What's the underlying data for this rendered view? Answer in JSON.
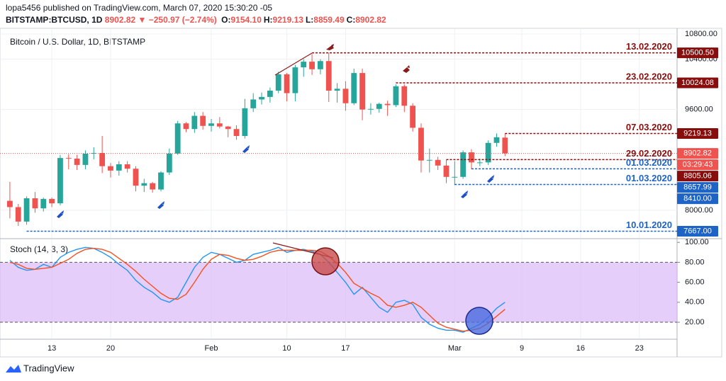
{
  "header": {
    "published": "lopa5456 published on TradingView.com, March 07, 2020 15:30:20 -05",
    "symbol": "BITSTAMP:BTCUSD, 1D",
    "change": "8902.82 ▼ −250.97 (−2.74%)",
    "ohlc": [
      {
        "key": "O:",
        "value": "9154.10"
      },
      {
        "key": "H:",
        "value": "9219.13"
      },
      {
        "key": "L:",
        "value": "8859.49"
      },
      {
        "key": "C:",
        "value": "8902.82"
      }
    ]
  },
  "footer": {
    "brand": "TradingView"
  },
  "chart_data": [
    {
      "type": "candlestick",
      "title": "Bitcoin / U.S. Dollar, 1D, BITSTAMP",
      "categories": [
        null,
        null,
        null,
        null,
        null,
        "13",
        null,
        null,
        null,
        null,
        null,
        null,
        "20",
        null,
        null,
        null,
        null,
        null,
        null,
        null,
        null,
        null,
        null,
        null,
        "Feb",
        null,
        null,
        null,
        null,
        null,
        null,
        null,
        null,
        "10",
        null,
        null,
        null,
        null,
        null,
        null,
        "17",
        null,
        null,
        null,
        null,
        null,
        null,
        null,
        null,
        null,
        null,
        null,
        null,
        "Mar",
        null,
        null,
        null,
        null,
        null,
        null,
        null,
        "9",
        null,
        null,
        null,
        null,
        null,
        null,
        "16",
        null,
        null,
        null,
        null,
        null,
        null,
        "23",
        null,
        null,
        null,
        null
      ],
      "open": [
        8150,
        8050,
        7820,
        8190,
        8030,
        8180,
        8110,
        8830,
        8820,
        8720,
        8900,
        8910,
        8700,
        8630,
        8730,
        8660,
        8390,
        8430,
        8330,
        8600,
        8900,
        9380,
        9290,
        9500,
        9340,
        9380,
        9330,
        9290,
        9180,
        9620,
        9760,
        9800,
        9900,
        10160,
        9860,
        10270,
        10360,
        10240,
        10370,
        9900,
        9930,
        9700,
        10180,
        9600,
        9610,
        9690,
        9670,
        9970,
        9660,
        9310,
        8790,
        8800,
        8710,
        8530,
        8530,
        8920,
        8760,
        8760,
        9070,
        9154.1,
        null,
        null,
        null,
        null,
        null,
        null,
        null,
        null,
        null,
        null,
        null,
        null,
        null,
        null,
        null,
        null,
        null,
        null,
        null,
        null
      ],
      "high": [
        8450,
        8100,
        8220,
        8290,
        8200,
        8200,
        8880,
        8890,
        8880,
        8950,
        9000,
        9180,
        8750,
        8780,
        8780,
        8700,
        8500,
        8450,
        8620,
        8980,
        9420,
        9400,
        9560,
        9560,
        9450,
        9480,
        9340,
        9350,
        9770,
        9860,
        9870,
        9950,
        10200,
        10180,
        10310,
        10400,
        10480,
        10400,
        10500,
        10020,
        10050,
        10250,
        10250,
        9700,
        9710,
        9740,
        10000,
        10000,
        9700,
        9380,
        8980,
        8850,
        8800,
        8780,
        8950,
        8970,
        8820,
        9110,
        9220,
        9219.13,
        null,
        null,
        null,
        null,
        null,
        null,
        null,
        null,
        null,
        null,
        null,
        null,
        null,
        null,
        null,
        null,
        null,
        null,
        null,
        null
      ],
      "low": [
        7870,
        7750,
        7770,
        7960,
        7980,
        8050,
        8080,
        8650,
        8640,
        8650,
        8810,
        8590,
        8520,
        8550,
        8600,
        8300,
        8290,
        8280,
        8300,
        8560,
        8880,
        9240,
        9230,
        9280,
        9250,
        9300,
        9160,
        9120,
        9140,
        9560,
        9680,
        9710,
        9860,
        9730,
        9730,
        10120,
        10150,
        10160,
        9720,
        9710,
        9580,
        9670,
        9430,
        9520,
        9550,
        9500,
        9640,
        9560,
        9250,
        8600,
        8600,
        8640,
        8430,
        8400,
        8500,
        8650,
        8700,
        8720,
        9010,
        8859.49,
        null,
        null,
        null,
        null,
        null,
        null,
        null,
        null,
        null,
        null,
        null,
        null,
        null,
        null,
        null,
        null,
        null,
        null,
        null,
        null
      ],
      "close": [
        8050,
        7820,
        8190,
        8030,
        8180,
        8110,
        8830,
        8820,
        8720,
        8900,
        8910,
        8700,
        8630,
        8730,
        8660,
        8390,
        8430,
        8330,
        8600,
        8900,
        9380,
        9290,
        9500,
        9340,
        9380,
        9330,
        9290,
        9180,
        9620,
        9760,
        9800,
        9900,
        10160,
        9860,
        10270,
        10360,
        10240,
        10370,
        9900,
        9930,
        9700,
        10180,
        9600,
        9610,
        9690,
        9670,
        9970,
        9660,
        9310,
        8790,
        8800,
        8710,
        8530,
        8530,
        8920,
        8760,
        8760,
        9070,
        9160,
        8902.82,
        null,
        null,
        null,
        null,
        null,
        null,
        null,
        null,
        null,
        null,
        null,
        null,
        null,
        null,
        null,
        null,
        null,
        null,
        null,
        null
      ],
      "up_color": "#26a69a",
      "down_color": "#ef5350",
      "ylim": [
        7560,
        10890
      ],
      "yticks": [
        {
          "value": 8000,
          "label": "8000.00"
        },
        {
          "value": 9600,
          "label": "9600.00"
        },
        {
          "value": 10400,
          "label": "10400.00"
        },
        {
          "value": 10800,
          "label": "10800.00"
        }
      ],
      "grid": true,
      "last": {
        "value": 8902.82,
        "label": "8902.82",
        "countdown": "03:29:43",
        "color": "#ef5350"
      },
      "levels": [
        {
          "date": "13.02.2020",
          "value": 10500.5,
          "label": "10500.50",
          "color": "#880e0e"
        },
        {
          "date": "23.02.2020",
          "value": 10024.08,
          "label": "10024.08",
          "color": "#880e0e"
        },
        {
          "date": "07.03.2020",
          "value": 9219.13,
          "label": "9219.13",
          "color": "#880e0e"
        },
        {
          "date": "29.02.2020",
          "value": 8805.06,
          "label": "8805.06",
          "color": "#880e0e"
        },
        {
          "date": "01.03.2020",
          "value": 8657.99,
          "label": "8657.99",
          "color": "#1e63c6"
        },
        {
          "date": "01.03.2020",
          "value": 8410,
          "label": "8410.00",
          "color": "#1e63c6"
        },
        {
          "date": "10.01.2020",
          "value": 7667,
          "label": "7667.00",
          "color": "#1e63c6"
        }
      ]
    },
    {
      "type": "line",
      "title": "Stoch (14, 3, 3)",
      "series": [
        {
          "color": "#2196f3",
          "values": [
            82,
            75,
            72,
            73,
            78,
            75,
            85,
            90,
            93,
            95,
            94,
            90,
            85,
            78,
            72,
            62,
            55,
            50,
            43,
            40,
            45,
            60,
            75,
            85,
            90,
            88,
            84,
            80,
            82,
            88,
            90,
            92,
            95,
            90,
            92,
            93,
            91,
            88,
            80,
            70,
            60,
            48,
            55,
            45,
            35,
            30,
            40,
            42,
            38,
            25,
            18,
            14,
            12,
            12,
            10,
            14,
            18,
            25,
            34,
            40,
            null,
            null,
            null,
            null,
            null,
            null,
            null,
            null,
            null,
            null,
            null,
            null,
            null,
            null,
            null,
            null,
            null,
            null,
            null,
            null
          ]
        },
        {
          "color": "#f4511e",
          "values": [
            80,
            78,
            74,
            73,
            74,
            75,
            79,
            83,
            89,
            93,
            94,
            93,
            90,
            84,
            78,
            71,
            63,
            56,
            49,
            44,
            43,
            48,
            60,
            73,
            83,
            88,
            87,
            84,
            82,
            83,
            86,
            90,
            92,
            92,
            92,
            92,
            92,
            91,
            86,
            79,
            70,
            59,
            54,
            49,
            45,
            37,
            35,
            37,
            40,
            35,
            27,
            19,
            15,
            13,
            11,
            12,
            14,
            19,
            26,
            33,
            null,
            null,
            null,
            null,
            null,
            null,
            null,
            null,
            null,
            null,
            null,
            null,
            null,
            null,
            null,
            null,
            null,
            null,
            null,
            null
          ]
        }
      ],
      "ylim": [
        3,
        103
      ],
      "yticks": [
        {
          "value": 20,
          "label": "20.00"
        },
        {
          "value": 40,
          "label": "40.00"
        },
        {
          "value": 60,
          "label": "60.00"
        },
        {
          "value": 80,
          "label": "80.00"
        },
        {
          "value": 100,
          "label": "100.00"
        }
      ],
      "band": [
        20,
        80
      ],
      "band_color": "#d9b3f7"
    }
  ]
}
